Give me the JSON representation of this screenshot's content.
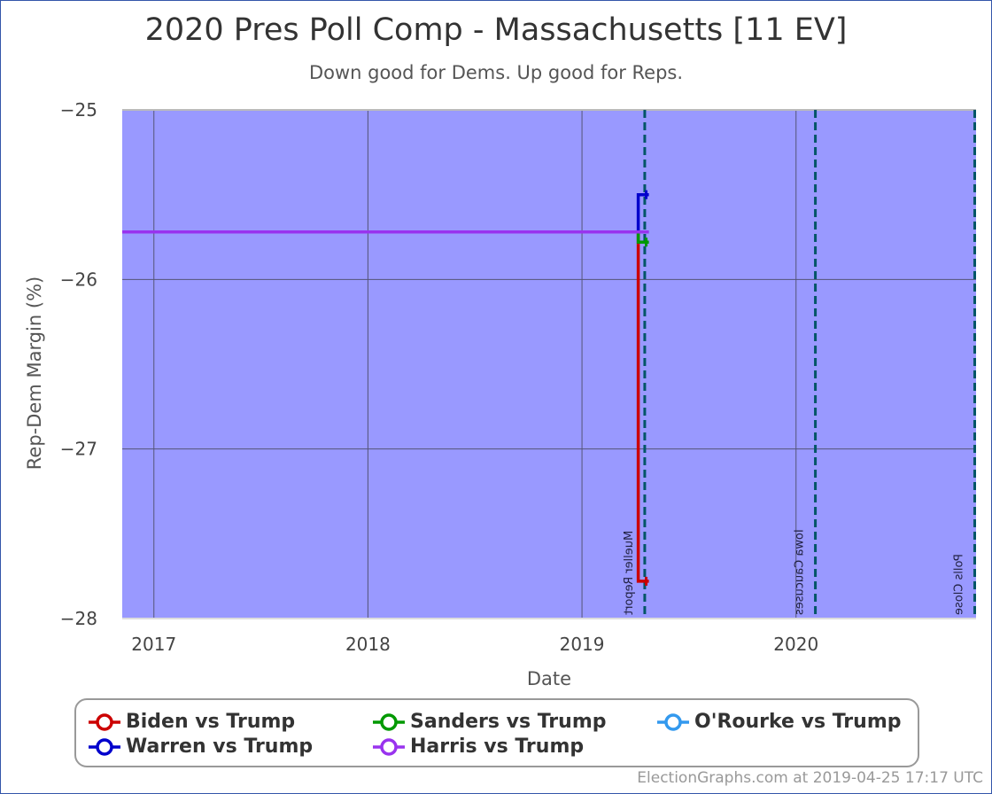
{
  "title": "2020 Pres Poll Comp - Massachusetts [11 EV]",
  "subtitle": "Down good for Dems. Up good for Reps.",
  "footer": "ElectionGraphs.com at 2019-04-25 17:17 UTC",
  "chart_data": {
    "type": "line",
    "title": "2020 Pres Poll Comp - Massachusetts [11 EV]",
    "subtitle": "Down good for Dems. Up good for Reps.",
    "xlabel": "Date",
    "ylabel": "Rep-Dem Margin (%)",
    "xlim": [
      "2016-11-08",
      "2020-11-03"
    ],
    "ylim": [
      -28,
      -25
    ],
    "y_reversed_display": true,
    "x_ticks": [
      {
        "label": "2017",
        "date": "2017-01-01"
      },
      {
        "label": "2018",
        "date": "2018-01-01"
      },
      {
        "label": "2019",
        "date": "2019-01-01"
      },
      {
        "label": "2020",
        "date": "2020-01-01"
      }
    ],
    "y_ticks": [
      -25,
      -26,
      -27,
      -28
    ],
    "grid": true,
    "background_color": "#9999ff",
    "events": [
      {
        "label": "Mueller Report",
        "date": "2019-04-18"
      },
      {
        "label": "Iowa Caucuses",
        "date": "2020-02-03"
      },
      {
        "label": "Polls Close",
        "date": "2020-11-03"
      }
    ],
    "series": [
      {
        "name": "Biden vs Trump",
        "color": "#cc0000",
        "points": [
          [
            "2016-11-08",
            -25.72
          ],
          [
            "2019-04-07",
            -25.72
          ],
          [
            "2019-04-07",
            -27.78
          ],
          [
            "2019-04-25",
            -27.78
          ]
        ]
      },
      {
        "name": "Sanders vs Trump",
        "color": "#009900",
        "points": [
          [
            "2016-11-08",
            -25.72
          ],
          [
            "2019-04-07",
            -25.72
          ],
          [
            "2019-04-07",
            -25.78
          ],
          [
            "2019-04-25",
            -25.78
          ]
        ]
      },
      {
        "name": "O'Rourke vs Trump",
        "color": "#3399ee",
        "points": [
          [
            "2016-11-08",
            -25.72
          ],
          [
            "2019-04-25",
            -25.72
          ]
        ]
      },
      {
        "name": "Warren vs Trump",
        "color": "#0000cc",
        "points": [
          [
            "2016-11-08",
            -25.72
          ],
          [
            "2019-04-07",
            -25.72
          ],
          [
            "2019-04-07",
            -25.5
          ],
          [
            "2019-04-25",
            -25.5
          ]
        ]
      },
      {
        "name": "Harris vs Trump",
        "color": "#9933ee",
        "points": [
          [
            "2016-11-08",
            -25.72
          ],
          [
            "2019-04-25",
            -25.72
          ]
        ]
      }
    ]
  }
}
